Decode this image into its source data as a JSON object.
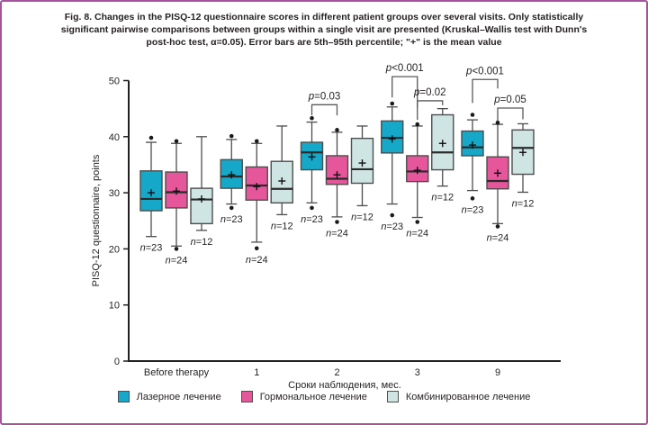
{
  "frame": {
    "border_color": "#a4549c",
    "background_color": "#ffffff"
  },
  "caption": {
    "lines": [
      "Fig. 8. Changes in the PISQ-12 questionnaire scores in different patient groups over several visits. Only statistically",
      "significant pairwise comparisons between groups within a single visit are presented (Kruskal–Wallis test with Dunn's",
      "post-hoc test, α=0.05). Error bars are 5th–95th percentile; \"+\" is the mean value"
    ],
    "text_color": "#231f20"
  },
  "chart_data": {
    "type": "boxplot",
    "title": "Fig. 8. Changes in the PISQ-12 questionnaire scores in different patient groups over several visits.",
    "xlabel": "Сроки наблюдения, мес.",
    "ylabel": "PISQ-12 questionnaire, points",
    "categories": [
      "Before therapy",
      "1",
      "2",
      "3",
      "9"
    ],
    "ylim": [
      0,
      50
    ],
    "yticks": [
      0,
      10,
      20,
      30,
      40,
      50
    ],
    "grid": false,
    "legend_position": "bottom",
    "series": [
      {
        "id": "laser",
        "name": "Лазерное лечение",
        "color": "#16a8c8",
        "boxes": [
          {
            "low": 22.2,
            "q1": 26.8,
            "median": 28.9,
            "mean": 30.0,
            "q3": 33.9,
            "high": 39.0,
            "outliers": [
              39.8
            ],
            "n": "n=23"
          },
          {
            "low": 28.0,
            "q1": 30.8,
            "median": 32.9,
            "mean": 33.2,
            "q3": 35.9,
            "high": 39.5,
            "outliers": [
              40.1,
              27.3
            ],
            "n": "n=23"
          },
          {
            "low": 28.2,
            "q1": 34.1,
            "median": 37.2,
            "mean": 36.4,
            "q3": 39.0,
            "high": 42.6,
            "outliers": [
              43.3,
              27.3
            ],
            "n": "n=23"
          },
          {
            "low": 28.0,
            "q1": 37.1,
            "median": 39.8,
            "mean": 39.6,
            "q3": 42.8,
            "high": 45.3,
            "outliers": [
              45.9,
              26.0
            ],
            "n": "n=23"
          },
          {
            "low": 30.4,
            "q1": 36.6,
            "median": 38.1,
            "mean": 38.5,
            "q3": 41.0,
            "high": 43.0,
            "outliers": [
              43.9,
              29.0
            ],
            "n": "n=23"
          }
        ]
      },
      {
        "id": "hormonal",
        "name": "Гормональное лечение",
        "color": "#e6569b",
        "boxes": [
          {
            "low": 20.5,
            "q1": 27.3,
            "median": 30.1,
            "mean": 30.3,
            "q3": 33.7,
            "high": 38.8,
            "outliers": [
              39.2,
              20.0
            ],
            "n": "n=24"
          },
          {
            "low": 21.2,
            "q1": 28.7,
            "median": 31.3,
            "mean": 31.1,
            "q3": 34.6,
            "high": 38.8,
            "outliers": [
              39.2,
              20.1
            ],
            "n": "n=24"
          },
          {
            "low": 25.7,
            "q1": 31.5,
            "median": 32.5,
            "mean": 33.2,
            "q3": 36.6,
            "high": 40.8,
            "outliers": [
              41.2,
              24.8
            ],
            "n": "n=24"
          },
          {
            "low": 25.6,
            "q1": 32.0,
            "median": 33.8,
            "mean": 34.0,
            "q3": 36.6,
            "high": 41.9,
            "outliers": [
              42.2,
              24.8
            ],
            "n": "n=24"
          },
          {
            "low": 24.5,
            "q1": 30.7,
            "median": 32.1,
            "mean": 33.5,
            "q3": 36.4,
            "high": 42.2,
            "outliers": [
              42.5,
              24.0
            ],
            "n": "n=24"
          }
        ]
      },
      {
        "id": "combined",
        "name": "Комбинированное лечение",
        "color": "#cfe5e4",
        "boxes": [
          {
            "low": 23.3,
            "q1": 24.5,
            "median": 28.8,
            "mean": 28.9,
            "q3": 30.8,
            "high": 40.0,
            "outliers": [],
            "n": "n=12"
          },
          {
            "low": 26.1,
            "q1": 28.2,
            "median": 30.7,
            "mean": 32.1,
            "q3": 35.6,
            "high": 41.9,
            "outliers": [],
            "n": "n=12"
          },
          {
            "low": 27.7,
            "q1": 31.7,
            "median": 34.2,
            "mean": 35.3,
            "q3": 39.7,
            "high": 41.9,
            "outliers": [],
            "n": "n=12"
          },
          {
            "low": 31.2,
            "q1": 34.1,
            "median": 37.2,
            "mean": 38.8,
            "q3": 43.9,
            "high": 45.0,
            "outliers": [],
            "n": "n=12"
          },
          {
            "low": 30.1,
            "q1": 33.3,
            "median": 38.0,
            "mean": 37.2,
            "q3": 41.2,
            "high": 42.3,
            "outliers": [],
            "n": "n=12"
          }
        ]
      }
    ],
    "annotations": [
      {
        "category": 2,
        "from": 0,
        "to": 1,
        "bar": 45.7,
        "leg_from": 43.8,
        "leg_to": 43.8,
        "label": "p=0.03"
      },
      {
        "category": 3,
        "from": 0,
        "to": 1,
        "bar": 50.7,
        "leg_from": 47.0,
        "leg_to": 45.2,
        "label": "p<0.001"
      },
      {
        "category": 3,
        "from": 1,
        "to": 2,
        "bar": 46.4,
        "leg_from": 43.0,
        "leg_to": 45.6,
        "label": "p=0.02"
      },
      {
        "category": 4,
        "from": 0,
        "to": 1,
        "bar": 50.2,
        "leg_from": 46.0,
        "leg_to": 48.6,
        "label": "p<0.001"
      },
      {
        "category": 4,
        "from": 1,
        "to": 2,
        "bar": 45.1,
        "leg_from": 42.8,
        "leg_to": 43.1,
        "label": "p=0.05"
      }
    ],
    "style": {
      "axis_color": "#231f20",
      "box_stroke": "#4d4d4d",
      "median_color": "#2b2b2b",
      "bracket_color": "#58595b",
      "text_color": "#231f20"
    }
  }
}
